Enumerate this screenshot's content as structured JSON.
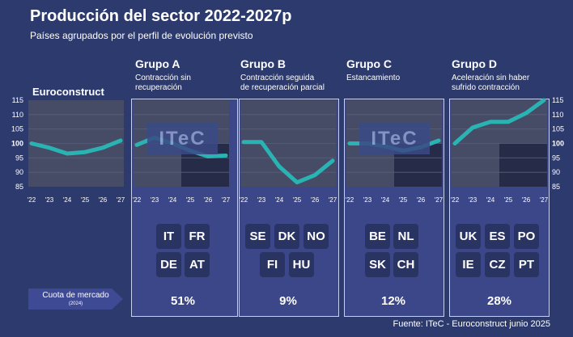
{
  "title": "Producción del sector 2022-2027p",
  "subtitle": "Países agrupados por el perfil de evolución previsto",
  "source": "Fuente: ITeC - Euroconstruct junio 2025",
  "market_label": "Cuota de mercado",
  "market_year": "(2024)",
  "watermark": "ITeC",
  "colors": {
    "background": "#2d3a6e",
    "panel": "#3b4788",
    "plot": "#474c66",
    "forecast": "#262c47",
    "line": "#2ab3b3"
  },
  "euroconstruct": {
    "title": "Euroconstruct"
  },
  "groups": [
    {
      "name": "Grupo A",
      "desc": "Contracción sin\nrecuperación",
      "countries": [
        "IT",
        "FR",
        "DE",
        "AT"
      ],
      "share": "51%"
    },
    {
      "name": "Grupo B",
      "desc": "Contracción seguida\nde recuperación parcial",
      "countries": [
        "SE",
        "DK",
        "NO",
        "FI",
        "HU"
      ],
      "share": "9%"
    },
    {
      "name": "Grupo C",
      "desc": "Estancamiento",
      "countries": [
        "BE",
        "NL",
        "SK",
        "CH"
      ],
      "share": "12%"
    },
    {
      "name": "Grupo D",
      "desc": "Aceleración sin haber\nsufrido contracción",
      "countries": [
        "UK",
        "ES",
        "PO",
        "IE",
        "CZ",
        "PT"
      ],
      "share": "28%"
    }
  ],
  "chart_data": [
    {
      "type": "line",
      "name": "Euroconstruct",
      "x": [
        "'22",
        "'23",
        "'24",
        "'25",
        "'26",
        "'27"
      ],
      "values": [
        100,
        98.5,
        96.5,
        97,
        98.5,
        101
      ],
      "ylim": [
        85,
        115
      ],
      "yticks": [
        85,
        90,
        95,
        100,
        105,
        110,
        115
      ]
    },
    {
      "type": "line",
      "name": "Grupo A",
      "x": [
        "'22",
        "'23",
        "'24",
        "'25",
        "'26",
        "'27"
      ],
      "values": [
        99.5,
        102,
        100,
        97.5,
        95.5,
        95.8
      ],
      "ylim": [
        85,
        115
      ],
      "forecast_from": "'25"
    },
    {
      "type": "line",
      "name": "Grupo B",
      "x": [
        "'22",
        "'23",
        "'24",
        "'25",
        "'26",
        "'27"
      ],
      "values": [
        100.5,
        100.5,
        92,
        86.5,
        89,
        94
      ],
      "ylim": [
        85,
        115
      ]
    },
    {
      "type": "line",
      "name": "Grupo C",
      "x": [
        "'22",
        "'23",
        "'24",
        "'25",
        "'26",
        "'27"
      ],
      "values": [
        100,
        100,
        99,
        97.5,
        98.7,
        101
      ],
      "ylim": [
        85,
        115
      ],
      "forecast_from": "'25"
    },
    {
      "type": "line",
      "name": "Grupo D",
      "x": [
        "'22",
        "'23",
        "'24",
        "'25",
        "'26",
        "'27"
      ],
      "values": [
        100,
        105.5,
        107.5,
        107.5,
        110.5,
        115
      ],
      "ylim": [
        85,
        115
      ],
      "yticks": [
        85,
        90,
        95,
        100,
        105,
        110,
        115
      ],
      "forecast_from": "'25"
    }
  ]
}
